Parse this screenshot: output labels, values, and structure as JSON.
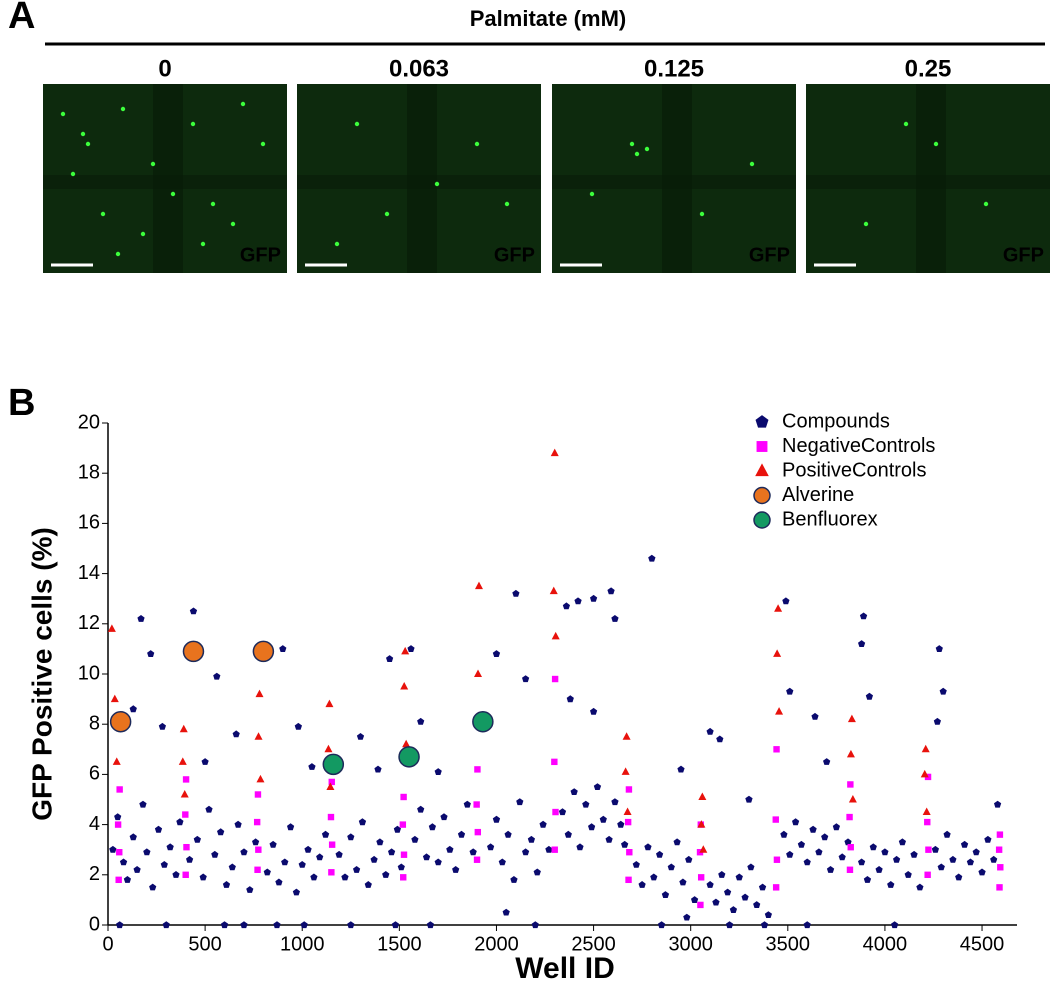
{
  "panel_a": {
    "panel_label": "A",
    "title": "Palmitate (mM)",
    "images": [
      {
        "label": "0",
        "channel": "GFP"
      },
      {
        "label": "0.063",
        "channel": "GFP"
      },
      {
        "label": "0.125",
        "channel": "GFP"
      },
      {
        "label": "0.25",
        "channel": "GFP"
      }
    ]
  },
  "chart_data": {
    "type": "scatter",
    "panel_label": "B",
    "xlabel": "Well ID",
    "ylabel": "GFP Positive cells (%)",
    "xlim": [
      0,
      4680
    ],
    "ylim": [
      0,
      20
    ],
    "xticks": [
      0,
      500,
      1000,
      1500,
      2000,
      2500,
      3000,
      3500,
      4000,
      4500
    ],
    "yticks": [
      0,
      2,
      4,
      6,
      8,
      10,
      12,
      14,
      16,
      18,
      20
    ],
    "legend": "upper right",
    "series": [
      {
        "name": "Compounds",
        "color": "#0a0a6e",
        "marker": "pentagon",
        "x": [
          25,
          50,
          80,
          100,
          130,
          150,
          180,
          200,
          230,
          260,
          290,
          320,
          350,
          370,
          170,
          220,
          130,
          280,
          60,
          300,
          420,
          460,
          490,
          520,
          550,
          580,
          610,
          640,
          670,
          700,
          730,
          760,
          440,
          560,
          660,
          500,
          600,
          700,
          820,
          850,
          880,
          910,
          940,
          970,
          1000,
          1030,
          1060,
          1090,
          1120,
          900,
          980,
          1050,
          870,
          1010,
          1190,
          1220,
          1250,
          1280,
          1310,
          1340,
          1370,
          1400,
          1430,
          1460,
          1490,
          1510,
          1450,
          1300,
          1390,
          1250,
          1480,
          1580,
          1610,
          1640,
          1670,
          1700,
          1730,
          1760,
          1790,
          1820,
          1850,
          1880,
          1560,
          1610,
          1700,
          1660,
          1970,
          2000,
          2030,
          2060,
          2090,
          2120,
          2150,
          2180,
          2210,
          2240,
          2270,
          2100,
          2000,
          2150,
          2050,
          2200,
          2340,
          2370,
          2400,
          2430,
          2460,
          2490,
          2520,
          2550,
          2580,
          2610,
          2640,
          2660,
          2420,
          2500,
          2590,
          2610,
          2360,
          2380,
          2500,
          2720,
          2750,
          2780,
          2810,
          2840,
          2870,
          2900,
          2930,
          2960,
          2990,
          3020,
          2800,
          2950,
          3100,
          2850,
          2980,
          3100,
          3130,
          3160,
          3190,
          3220,
          3250,
          3280,
          3310,
          3340,
          3370,
          3400,
          3150,
          3300,
          3200,
          3380,
          3480,
          3510,
          3540,
          3570,
          3600,
          3630,
          3660,
          3690,
          3720,
          3750,
          3780,
          3810,
          3490,
          3510,
          3640,
          3700,
          3600,
          3880,
          3910,
          3940,
          3970,
          4000,
          4030,
          4060,
          4090,
          4120,
          4150,
          4180,
          3890,
          3920,
          3880,
          4050,
          4260,
          4290,
          4320,
          4350,
          4380,
          4410,
          4440,
          4470,
          4500,
          4530,
          4560,
          4580,
          4280,
          4270,
          4300
        ],
        "values": [
          3,
          4.3,
          2.5,
          1.8,
          3.5,
          2.2,
          4.8,
          2.9,
          1.5,
          3.8,
          2.4,
          3.1,
          2.0,
          4.1,
          12.2,
          10.8,
          8.6,
          7.9,
          0,
          0,
          2.6,
          3.4,
          1.9,
          4.6,
          2.8,
          3.7,
          1.6,
          2.3,
          4.0,
          2.9,
          1.4,
          3.3,
          12.5,
          9.9,
          7.6,
          6.5,
          0,
          0,
          2.1,
          3.2,
          1.7,
          2.5,
          3.9,
          1.3,
          2.4,
          3.0,
          1.9,
          2.7,
          3.6,
          11.0,
          7.9,
          6.3,
          0,
          0,
          2.8,
          1.9,
          3.5,
          2.2,
          4.1,
          1.6,
          2.6,
          3.3,
          2.0,
          2.9,
          3.8,
          2.3,
          10.6,
          7.5,
          6.2,
          0,
          0,
          3.4,
          4.6,
          2.7,
          3.9,
          2.5,
          4.3,
          3.0,
          2.2,
          3.6,
          4.8,
          2.9,
          11.0,
          8.1,
          6.1,
          0,
          3.1,
          4.2,
          2.5,
          3.6,
          1.8,
          4.9,
          2.9,
          3.4,
          2.1,
          4.0,
          3.0,
          13.2,
          10.8,
          9.8,
          0.5,
          0,
          4.5,
          3.6,
          5.3,
          3.1,
          4.8,
          3.9,
          5.5,
          4.2,
          3.4,
          4.9,
          4.0,
          3.2,
          12.9,
          13.0,
          13.3,
          12.2,
          12.7,
          9.0,
          8.5,
          2.4,
          1.6,
          3.1,
          1.9,
          2.8,
          1.2,
          2.3,
          3.3,
          1.7,
          2.6,
          1.0,
          14.6,
          6.2,
          7.7,
          0,
          0.3,
          1.6,
          0.9,
          2.0,
          1.3,
          0.6,
          1.9,
          1.1,
          2.3,
          0.8,
          1.5,
          0.4,
          7.4,
          5.0,
          0,
          0,
          3.6,
          2.8,
          4.1,
          3.2,
          2.5,
          3.8,
          2.9,
          3.5,
          2.2,
          3.9,
          2.7,
          3.3,
          12.9,
          9.3,
          8.3,
          6.5,
          0,
          2.5,
          1.8,
          3.1,
          2.2,
          2.9,
          1.6,
          2.6,
          3.3,
          2.0,
          2.8,
          1.5,
          12.3,
          9.1,
          11.2,
          0,
          3.0,
          2.3,
          3.6,
          2.6,
          1.9,
          3.2,
          2.5,
          2.9,
          2.1,
          3.4,
          2.6,
          4.8,
          11.0,
          8.1,
          9.3
        ]
      },
      {
        "name": "NegativeControls",
        "color": "#ff00ff",
        "marker": "square",
        "x": [
          55,
          58,
          52,
          60,
          400,
          404,
          398,
          402,
          770,
          774,
          768,
          772,
          1150,
          1154,
          1148,
          1152,
          1520,
          1524,
          1518,
          1522,
          1900,
          1904,
          1898,
          1902,
          2300,
          2304,
          2298,
          2302,
          2680,
          2684,
          2678,
          2682,
          3050,
          3054,
          3048,
          3052,
          3440,
          3444,
          3438,
          3442,
          3820,
          3824,
          3818,
          3822,
          4220,
          4224,
          4218,
          4222,
          4590,
          4594,
          4588,
          4592
        ],
        "values": [
          1.8,
          2.9,
          4.0,
          5.4,
          2.0,
          3.1,
          4.4,
          5.8,
          2.2,
          3.0,
          4.1,
          5.2,
          2.1,
          3.2,
          4.3,
          5.7,
          1.9,
          2.8,
          4.0,
          5.1,
          2.6,
          3.7,
          4.8,
          6.2,
          3.0,
          4.5,
          6.5,
          9.8,
          1.8,
          2.9,
          4.1,
          5.4,
          0.8,
          1.9,
          2.9,
          4.0,
          1.5,
          2.6,
          4.2,
          7.0,
          2.2,
          3.1,
          4.3,
          5.6,
          2.0,
          3.0,
          4.1,
          5.9,
          1.5,
          2.3,
          3.0,
          3.6
        ]
      },
      {
        "name": "PositiveControls",
        "color": "#e8120c",
        "marker": "triangle",
        "x": [
          20,
          35,
          45,
          390,
          385,
          395,
          780,
          775,
          785,
          1140,
          1135,
          1145,
          1530,
          1525,
          1535,
          1910,
          1905,
          1915,
          2300,
          2295,
          2305,
          2670,
          2665,
          2675,
          3060,
          3055,
          3065,
          3450,
          3445,
          3455,
          3830,
          3825,
          3835,
          4210,
          4205,
          4215
        ],
        "values": [
          11.8,
          9.0,
          6.5,
          7.8,
          6.5,
          5.2,
          9.2,
          7.5,
          5.8,
          8.8,
          7.0,
          5.5,
          10.9,
          9.5,
          7.2,
          13.5,
          10.0,
          8.3,
          18.8,
          13.3,
          11.5,
          7.5,
          6.1,
          4.5,
          5.1,
          4.0,
          3.0,
          12.6,
          10.8,
          8.5,
          8.2,
          6.8,
          5.0,
          7.0,
          6.0,
          4.5
        ]
      },
      {
        "name": "Alverine",
        "color": "#e8731e",
        "marker": "circle",
        "x": [
          65,
          440,
          800
        ],
        "values": [
          8.1,
          10.9,
          10.9
        ]
      },
      {
        "name": "Benfluorex",
        "color": "#139962",
        "marker": "circle",
        "x": [
          1160,
          1550,
          1930
        ],
        "values": [
          6.4,
          6.7,
          8.1
        ]
      }
    ]
  }
}
